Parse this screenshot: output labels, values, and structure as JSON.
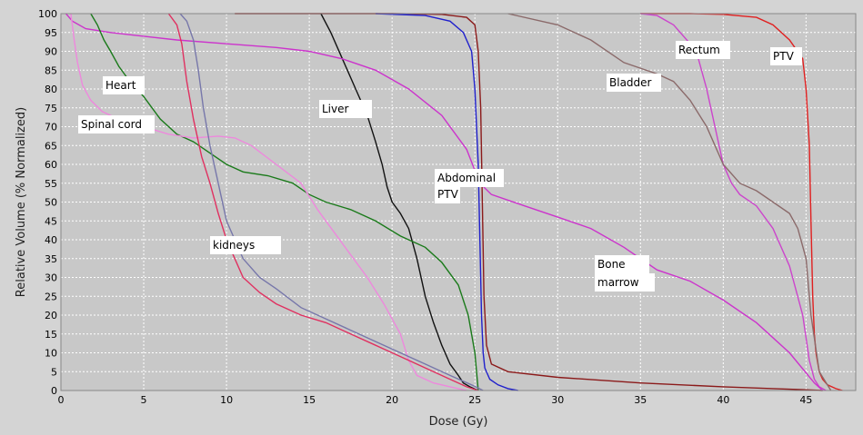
{
  "chart_data": {
    "type": "line",
    "title": "",
    "xlabel": "Dose (Gy)",
    "ylabel": "Relative Volume (% Normalized)",
    "xlim": [
      0,
      48
    ],
    "ylim": [
      0,
      100
    ],
    "xticks": [
      0,
      5,
      10,
      15,
      20,
      25,
      30,
      35,
      40,
      45
    ],
    "yticks": [
      0,
      5,
      10,
      15,
      20,
      25,
      30,
      35,
      40,
      45,
      50,
      55,
      60,
      65,
      70,
      75,
      80,
      85,
      90,
      95,
      100
    ],
    "grid": true,
    "series": [
      {
        "name": "PTV",
        "color": "#e02020",
        "x": [
          35,
          38,
          40,
          42,
          43,
          44,
          44.8,
          45.0,
          45.2,
          45.3,
          45.4,
          45.5,
          45.6,
          45.8,
          46.0,
          46.3,
          46.8,
          47.2
        ],
        "y": [
          100,
          100,
          99.8,
          99,
          97,
          93,
          88,
          80,
          65,
          45,
          25,
          15,
          10,
          5,
          3,
          1.5,
          0.5,
          0
        ]
      },
      {
        "name": "Rectum",
        "color": "#cc44cc",
        "x": [
          35,
          36,
          37,
          38,
          38.5,
          39,
          39.5,
          40,
          40.5,
          41,
          42,
          43,
          44,
          44.8,
          45.2,
          45.5,
          45.8,
          46.2
        ],
        "y": [
          100,
          99.5,
          97,
          92,
          88,
          80,
          70,
          60,
          55,
          52,
          49,
          43,
          33,
          20,
          8,
          3,
          1,
          0
        ]
      },
      {
        "name": "Bladder",
        "color": "#8b6a6a",
        "x": [
          27,
          30,
          32,
          34,
          36,
          37,
          38,
          39,
          40,
          41,
          42,
          43,
          44,
          44.5,
          45,
          45.3,
          45.8,
          46.5
        ],
        "y": [
          100,
          97,
          93,
          87,
          84,
          82,
          77,
          70,
          60,
          55,
          53,
          50,
          47,
          43,
          35,
          20,
          5,
          0
        ]
      },
      {
        "name": "Abdominal PTV",
        "color": "#8b1a1a",
        "x": [
          10.5,
          15,
          20,
          23,
          24.5,
          25.0,
          25.2,
          25.35,
          25.45,
          25.55,
          25.7,
          26,
          27,
          30,
          35,
          40,
          43,
          45,
          46
        ],
        "y": [
          100,
          100,
          100,
          99.8,
          99,
          97,
          90,
          75,
          50,
          25,
          12,
          7,
          5,
          3.5,
          2,
          1,
          0.5,
          0.2,
          0
        ]
      },
      {
        "name": "PTV (blue)",
        "color": "#2020cc",
        "x": [
          19,
          22,
          23.5,
          24.3,
          24.8,
          25.0,
          25.2,
          25.3,
          25.4,
          25.5,
          25.6,
          25.9,
          26.4,
          27,
          27.6
        ],
        "y": [
          100,
          99.5,
          98,
          95,
          90,
          80,
          60,
          40,
          20,
          10,
          6,
          3,
          1.5,
          0.5,
          0
        ]
      },
      {
        "name": "Liver",
        "color": "#111111",
        "x": [
          15.7,
          16.3,
          17.0,
          17.8,
          18.5,
          19.0,
          19.4,
          19.7,
          20.0,
          20.5,
          21.0,
          21.5,
          22.0,
          22.5,
          23.0,
          23.5,
          24.0,
          24.3,
          24.7,
          25.2
        ],
        "y": [
          100,
          95,
          88,
          80,
          73,
          66,
          60,
          54,
          50,
          47,
          43,
          35,
          25,
          18,
          12,
          7,
          4,
          2,
          1,
          0
        ]
      },
      {
        "name": "Bone marrow",
        "color": "#cc33cc",
        "x": [
          0.3,
          0.7,
          1.5,
          3,
          5,
          7,
          10,
          13,
          15,
          17,
          19,
          21,
          23,
          24.5,
          25.3,
          26,
          28,
          30,
          32,
          34,
          36,
          38,
          40,
          42,
          44,
          45.5,
          46
        ],
        "y": [
          100,
          98,
          96,
          95,
          94,
          93,
          92,
          91,
          90,
          88,
          85,
          80,
          73,
          64,
          55,
          52,
          49,
          46,
          43,
          38,
          32,
          29,
          24,
          18,
          10,
          2,
          0
        ]
      },
      {
        "name": "Heart",
        "color": "#1a7a1a",
        "x": [
          1.8,
          2.2,
          2.6,
          3.0,
          3.5,
          4.0,
          5.0,
          6.0,
          7.0,
          8.0,
          9.0,
          10.0,
          11.0,
          12.5,
          14.0,
          15.0,
          16.0,
          17.5,
          19.0,
          20.5,
          22.0,
          23.0,
          24.0,
          24.6,
          25.0,
          25.2
        ],
        "y": [
          100,
          97,
          93,
          90,
          86,
          83,
          78,
          72,
          68,
          66,
          63,
          60,
          58,
          57,
          55,
          52,
          50,
          48,
          45,
          41,
          38,
          34,
          28,
          20,
          10,
          0
        ]
      },
      {
        "name": "Spinal cord",
        "color": "#ee88dd",
        "x": [
          0.6,
          0.8,
          1.0,
          1.3,
          1.8,
          2.5,
          3.5,
          5.0,
          6.5,
          8.0,
          9.5,
          10.5,
          11.5,
          13.0,
          14.5,
          15.5,
          16.5,
          17.5,
          18.5,
          19.5,
          20.5,
          21.0,
          21.5,
          22.5,
          23.5,
          24.5
        ],
        "y": [
          100,
          93,
          87,
          81,
          77,
          74,
          72,
          70,
          68,
          67,
          67.5,
          67,
          65,
          60,
          55,
          48,
          42,
          36,
          30,
          23,
          15,
          8,
          4,
          2,
          1,
          0
        ]
      },
      {
        "name": "kidneys (red)",
        "color": "#e03060",
        "x": [
          6.5,
          7.0,
          7.3,
          7.6,
          8.0,
          8.5,
          9.0,
          9.5,
          10.0,
          10.5,
          11.0,
          12.0,
          13.0,
          14.5,
          16.0,
          17.5,
          19.0,
          20.5,
          22.0,
          23.5,
          24.5,
          25.2
        ],
        "y": [
          100,
          97,
          92,
          82,
          72,
          62,
          55,
          47,
          40,
          35,
          30,
          26,
          23,
          20,
          18,
          15,
          12,
          9,
          6,
          3,
          1,
          0
        ]
      },
      {
        "name": "kidneys (blue)",
        "color": "#7777aa",
        "x": [
          7.2,
          7.6,
          8.0,
          8.3,
          8.6,
          9.0,
          9.5,
          10.0,
          10.5,
          11.0,
          12.0,
          13.0,
          14.5,
          16.0,
          17.5,
          19.0,
          20.5,
          22.0,
          23.5,
          24.8,
          25.5
        ],
        "y": [
          100,
          98,
          93,
          85,
          75,
          65,
          55,
          45,
          40,
          35,
          30,
          27,
          22,
          19,
          16,
          13,
          10,
          7,
          4,
          1.5,
          0
        ]
      }
    ],
    "annotations": [
      {
        "text": "Heart"
      },
      {
        "text": "Spinal cord"
      },
      {
        "text": "Liver"
      },
      {
        "text": "Abdominal"
      },
      {
        "text": "PTV"
      },
      {
        "text": "kidneys"
      },
      {
        "text": "Bladder"
      },
      {
        "text": "Rectum"
      },
      {
        "text": "PTV"
      },
      {
        "text": "Bone"
      },
      {
        "text": "marrow"
      }
    ]
  }
}
